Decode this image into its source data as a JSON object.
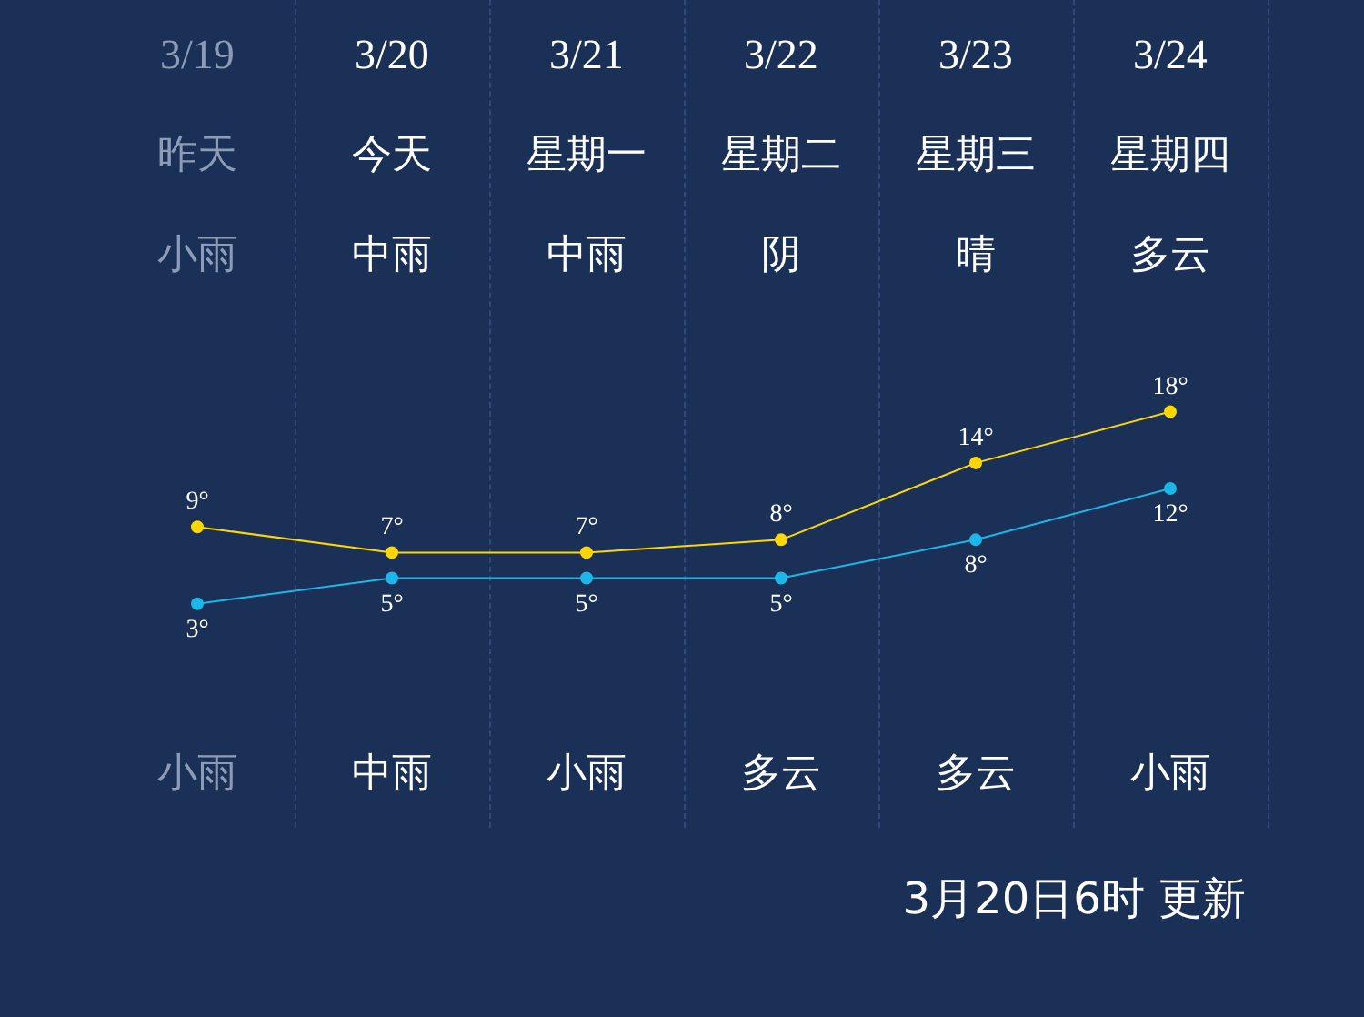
{
  "chart_data": {
    "type": "line",
    "categories": [
      "3/19",
      "3/20",
      "3/21",
      "3/22",
      "3/23",
      "3/24"
    ],
    "series": [
      {
        "color": "#ffd700",
        "values": [
          9,
          7,
          7,
          8,
          14,
          18
        ],
        "value_labels": [
          "9°",
          "7°",
          "7°",
          "8°",
          "14°",
          "18°"
        ]
      },
      {
        "color": "#1cb7ea",
        "values": [
          3,
          5,
          5,
          5,
          8,
          12
        ],
        "value_labels": [
          "3°",
          "5°",
          "5°",
          "5°",
          "8°",
          "12°"
        ]
      }
    ],
    "annotations": [
      "昨天",
      "今天",
      "星期一",
      "星期二",
      "星期三",
      "星期四",
      "小雨",
      "中雨",
      "中雨",
      "阴",
      "晴",
      "多云",
      "小雨",
      "中雨",
      "小雨",
      "多云",
      "多云",
      "小雨",
      "3月20日6时 更新"
    ],
    "grid": "x",
    "legend": false,
    "marker": "circle",
    "line_style": "solid"
  }
}
